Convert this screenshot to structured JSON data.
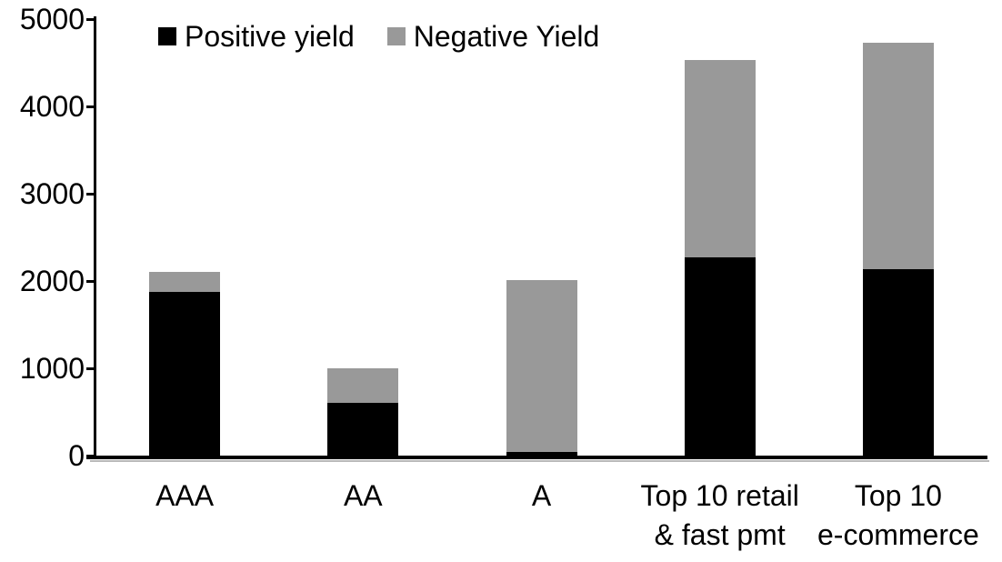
{
  "chart_data": {
    "type": "bar",
    "stacked": true,
    "title": "",
    "xlabel": "",
    "ylabel": "",
    "categories": [
      "AAA",
      "AA",
      "A",
      "Top 10 retail & fast pmt",
      "Top 10 e-commerce"
    ],
    "category_label_lines": [
      [
        "AAA"
      ],
      [
        "AA"
      ],
      [
        "A"
      ],
      [
        "Top 10 retail",
        "& fast pmt"
      ],
      [
        "Top 10",
        "e-commerce"
      ]
    ],
    "series": [
      {
        "name": "Positive yield",
        "color": "#000000",
        "values": [
          1875,
          605,
          40,
          2270,
          2135
        ]
      },
      {
        "name": "Negative Yield",
        "color": "#999999",
        "values": [
          230,
          395,
          1975,
          2265,
          2595
        ]
      }
    ],
    "stack_totals": [
      2105,
      1000,
      2015,
      4535,
      4730
    ],
    "ylim": [
      0,
      5000
    ],
    "yticks": [
      0,
      1000,
      2000,
      3000,
      4000,
      5000
    ],
    "grid": false,
    "legend_position": "top",
    "axis_color": "#000000",
    "background": "#ffffff"
  }
}
